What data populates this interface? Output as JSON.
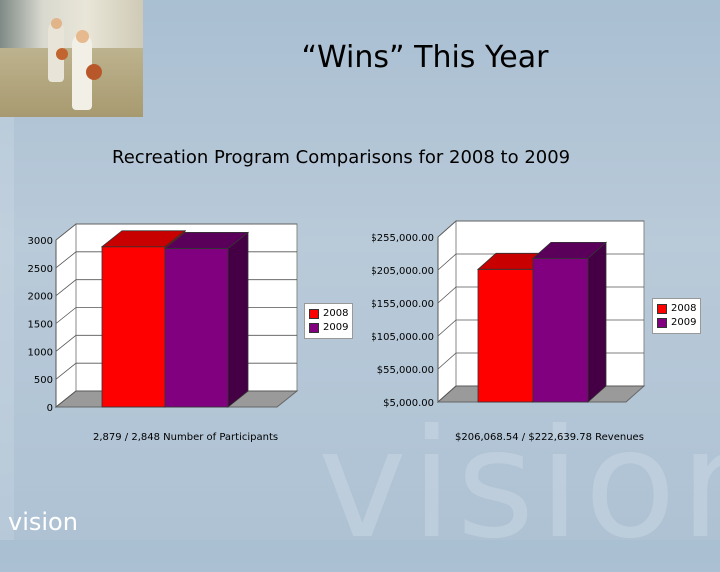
{
  "slide": {
    "title": "“Wins” This Year",
    "subtitle": "Recreation Program Comparisons for 2008 to 2009",
    "logo_text": "vision",
    "watermark_text": "vision"
  },
  "colors": {
    "series_2008": "#ff0000",
    "series_2008_dark": "#b00000",
    "series_2009": "#800080",
    "series_2009_dark": "#450045"
  },
  "chart_data": [
    {
      "type": "bar",
      "categories": [
        ""
      ],
      "series": [
        {
          "name": "2008",
          "values": [
            2879
          ]
        },
        {
          "name": "2009",
          "values": [
            2848
          ]
        }
      ],
      "ylim": [
        0,
        3000
      ],
      "yticks": [
        "0",
        "500",
        "1000",
        "1500",
        "2000",
        "2500",
        "3000"
      ],
      "caption": "2,879 / 2,848 Number of Participants",
      "legend": [
        "2008",
        "2009"
      ],
      "legend_position": "right",
      "grid": true
    },
    {
      "type": "bar",
      "categories": [
        ""
      ],
      "series": [
        {
          "name": "2008",
          "values": [
            206068.54
          ]
        },
        {
          "name": "2009",
          "values": [
            222639.78
          ]
        }
      ],
      "ylim": [
        5000,
        255000
      ],
      "yticks": [
        "$5,000.00",
        "$55,000.00",
        "$105,000.00",
        "$155,000.00",
        "$205,000.00",
        "$255,000.00"
      ],
      "caption": "$206,068.54 / $222,639.78  Revenues",
      "legend": [
        "2008",
        "2009"
      ],
      "legend_position": "right",
      "grid": true
    }
  ]
}
